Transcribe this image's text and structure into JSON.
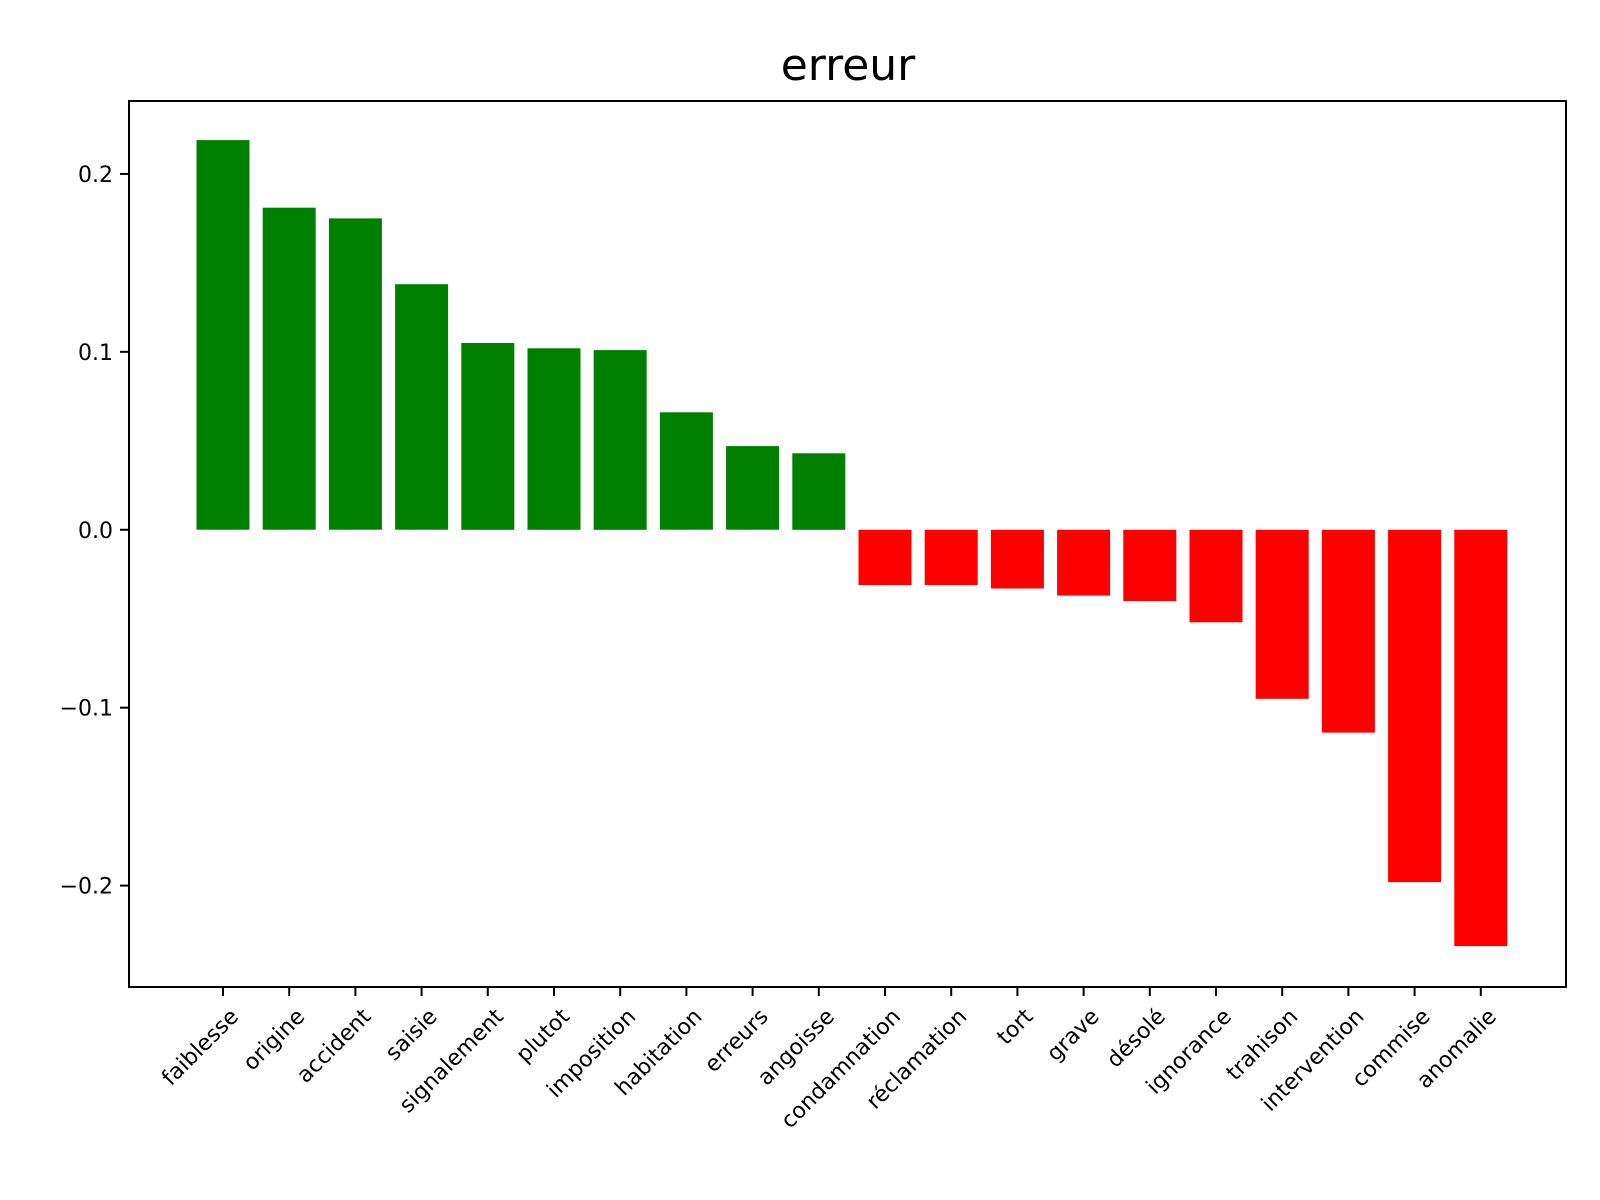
{
  "chart_data": {
    "type": "bar",
    "title": "erreur",
    "xlabel": "",
    "ylabel": "",
    "ylim": [
      -0.257,
      0.241
    ],
    "yticks": [
      {
        "value": -0.2,
        "label": "−0.2"
      },
      {
        "value": -0.1,
        "label": "−0.1"
      },
      {
        "value": 0.0,
        "label": "0.0"
      },
      {
        "value": 0.1,
        "label": "0.1"
      },
      {
        "value": 0.2,
        "label": "0.2"
      }
    ],
    "categories": [
      "faiblesse",
      "origine",
      "accident",
      "saisie",
      "signalement",
      "plutot",
      "imposition",
      "habitation",
      "erreurs",
      "angoisse",
      "condamnation",
      "réclamation",
      "tort",
      "grave",
      "désolé",
      "ignorance",
      "trahison",
      "intervention",
      "commise",
      "anomalie"
    ],
    "values": [
      0.219,
      0.181,
      0.175,
      0.138,
      0.105,
      0.102,
      0.101,
      0.066,
      0.047,
      0.043,
      -0.031,
      -0.031,
      -0.033,
      -0.037,
      -0.04,
      -0.052,
      -0.095,
      -0.114,
      -0.198,
      -0.234
    ],
    "colors": {
      "positive": "#008000",
      "negative": "#ff0000"
    },
    "grid": false,
    "legend": "none"
  }
}
